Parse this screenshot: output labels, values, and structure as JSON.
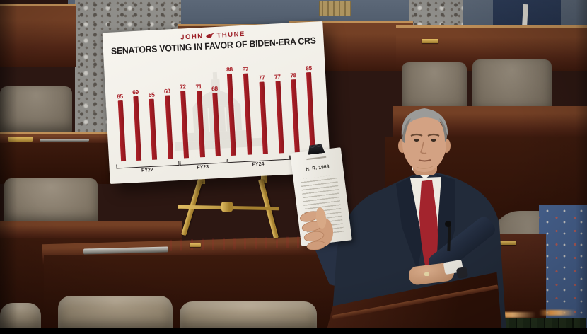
{
  "scene": {
    "description": "Senate floor video frame: speaker in navy suit and red tie at a wooden lectern holding a bill, beside a poster bar chart on a brass easel"
  },
  "poster": {
    "logo": {
      "left": "JOHN",
      "right": "THUNE"
    },
    "title": "SENATORS VOTING IN FAVOR OF BIDEN-ERA CRS",
    "colors": {
      "bar": "#ac2028",
      "logo": "#9c1f26",
      "background": "#f5f3ed",
      "title_text": "#201d1d"
    }
  },
  "chart_data": {
    "type": "bar",
    "title": "SENATORS VOTING IN FAVOR OF BIDEN-ERA CRS",
    "groups": [
      {
        "label": "FY22",
        "values": [
          65,
          69,
          65,
          68
        ]
      },
      {
        "label": "FY23",
        "values": [
          72,
          71,
          68
        ]
      },
      {
        "label": "FY24",
        "values": [
          88,
          87,
          77,
          77
        ]
      },
      {
        "label": "",
        "values": [
          78,
          85
        ]
      }
    ],
    "values_flat": [
      65,
      69,
      65,
      68,
      72,
      71,
      68,
      88,
      87,
      77,
      77,
      78,
      85
    ],
    "ylim": [
      0,
      100
    ],
    "bar_color": "#ac2028",
    "value_labels": true,
    "grid": false,
    "legend": "none",
    "note_visible_labels": [
      "FY22",
      "FY23",
      "FY24"
    ]
  },
  "held_document": {
    "heading": "H. R. 1968"
  },
  "colors": {
    "wall_slate": "#5c6878",
    "marble_gray": "#8f8e8a",
    "wood_dark": "#3a180c",
    "wood_mid": "#744025",
    "chair_taupe": "#8a8071",
    "chair_tan": "#b3a48d",
    "carpet_blue": "#47628f",
    "easel_gold": "#c9a53f",
    "suit_navy": "#222b3a",
    "tie_red": "#a3242d"
  }
}
